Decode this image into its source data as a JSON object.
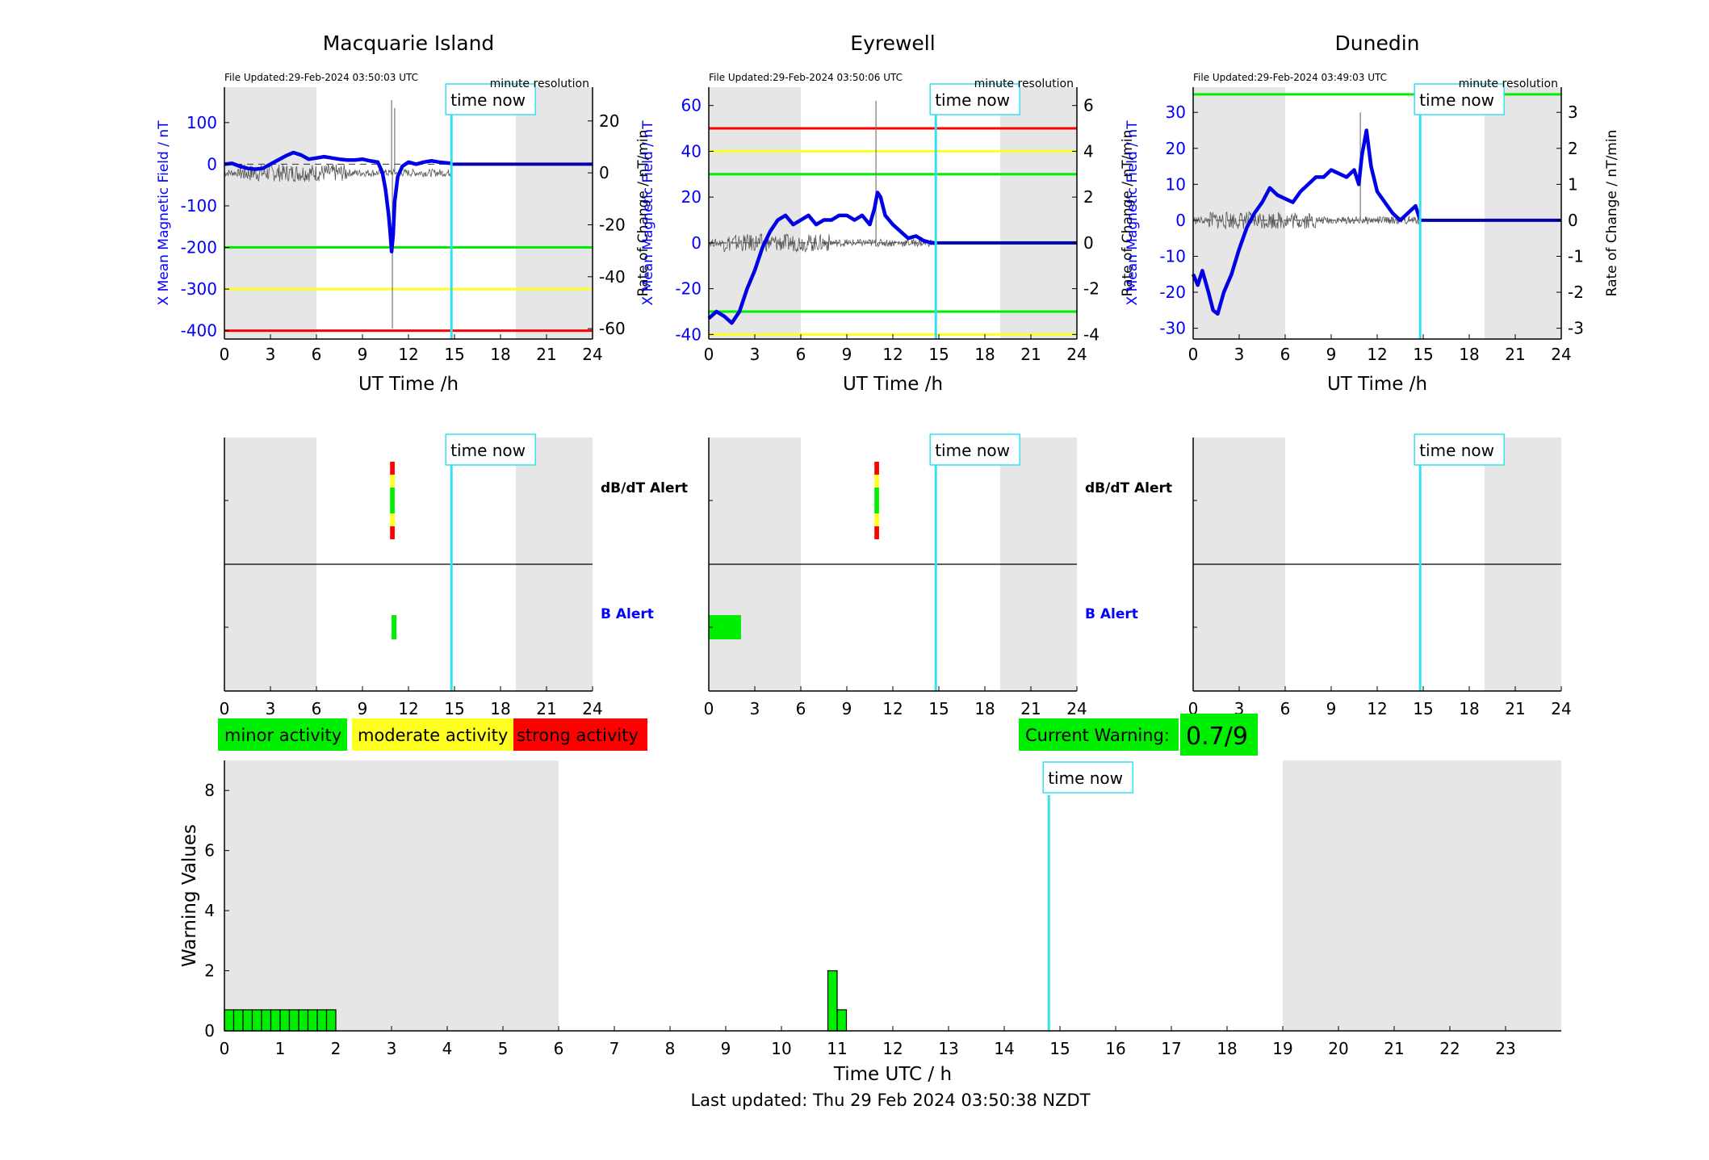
{
  "footer": {
    "last_updated": "Last updated: Thu 29 Feb 2024 03:50:38 NZDT"
  },
  "time_now_label": "time now",
  "colors": {
    "trace": "#0000e6",
    "rate": "#555555",
    "now": "#33e0f0",
    "green": "#00ee00",
    "yellow": "#ffff22",
    "red": "#ff0000",
    "shade": "#e6e6e6"
  },
  "chart_data": [
    {
      "type": "line",
      "title": "Macquarie Island",
      "file_updated": "File Updated:29-Feb-2024 03:50:03 UTC",
      "resolution": "minute resolution",
      "xlabel": "UT Time /h",
      "ylabel": "X Mean Magnetic Field / nT",
      "y2label": "Rate of Change / nT/min",
      "xlim": [
        0,
        24
      ],
      "ylim": [
        -420,
        185
      ],
      "y2lim": [
        -64,
        33
      ],
      "xticks": [
        "0",
        "3",
        "6",
        "9",
        "12",
        "15",
        "18",
        "21",
        "24"
      ],
      "yticks": [
        "100",
        "0",
        "-100",
        "-200",
        "-300",
        "-400"
      ],
      "y2ticks": [
        "20",
        "0",
        "-20",
        "-40",
        "-60"
      ],
      "night_shading": [
        [
          0,
          6
        ],
        [
          19,
          24
        ]
      ],
      "thresholds": [
        {
          "level": "green",
          "y": -200
        },
        {
          "level": "yellow",
          "y": -300
        },
        {
          "level": "red",
          "y": -400
        }
      ],
      "time_now": 14.8,
      "x": [
        0,
        0.5,
        1,
        1.5,
        2,
        2.5,
        3,
        3.5,
        4,
        4.5,
        5,
        5.5,
        6,
        6.5,
        7,
        7.5,
        8,
        8.5,
        9,
        9.5,
        10,
        10.3,
        10.5,
        10.7,
        10.8,
        10.9,
        11,
        11.1,
        11.3,
        11.6,
        12,
        12.5,
        13,
        13.5,
        14,
        14.5,
        14.8
      ],
      "y": [
        0,
        2,
        -5,
        -10,
        -12,
        -10,
        0,
        10,
        20,
        28,
        22,
        12,
        15,
        18,
        15,
        12,
        10,
        10,
        12,
        8,
        5,
        -20,
        -60,
        -120,
        -160,
        -210,
        -170,
        -90,
        -30,
        -5,
        5,
        0,
        5,
        8,
        5,
        3,
        2
      ],
      "forecast": [
        [
          14.8,
          0
        ],
        [
          24,
          0
        ]
      ],
      "rate_spikes": [
        [
          10.9,
          28
        ],
        [
          10.95,
          -60
        ],
        [
          11.1,
          25
        ]
      ]
    },
    {
      "type": "line",
      "title": "Eyrewell",
      "file_updated": "File Updated:29-Feb-2024 03:50:06 UTC",
      "resolution": "minute resolution",
      "xlabel": "UT Time /h",
      "ylabel": "X Mean Magnetic Field / nT",
      "y2label": "Rate of Change / nT/min",
      "xlim": [
        0,
        24
      ],
      "ylim": [
        -42,
        68
      ],
      "y2lim": [
        -4.2,
        6.8
      ],
      "xticks": [
        "0",
        "3",
        "6",
        "9",
        "12",
        "15",
        "18",
        "21",
        "24"
      ],
      "yticks": [
        "60",
        "40",
        "20",
        "0",
        "-20",
        "-40"
      ],
      "y2ticks": [
        "6",
        "4",
        "2",
        "0",
        "-2",
        "-4"
      ],
      "night_shading": [
        [
          0,
          6
        ],
        [
          19,
          24
        ]
      ],
      "thresholds": [
        {
          "level": "red",
          "y": 50
        },
        {
          "level": "yellow",
          "y": 40
        },
        {
          "level": "green",
          "y": 30
        },
        {
          "level": "green",
          "y": -30
        },
        {
          "level": "yellow",
          "y": -40
        }
      ],
      "time_now": 14.8,
      "x": [
        0,
        0.5,
        1,
        1.5,
        2,
        2.5,
        3,
        3.5,
        4,
        4.5,
        5,
        5.5,
        6,
        6.5,
        7,
        7.5,
        8,
        8.5,
        9,
        9.5,
        10,
        10.5,
        10.8,
        11,
        11.2,
        11.5,
        12,
        12.5,
        13,
        13.5,
        14,
        14.5,
        14.8
      ],
      "y": [
        -33,
        -30,
        -32,
        -35,
        -30,
        -20,
        -12,
        -2,
        5,
        10,
        12,
        8,
        10,
        12,
        8,
        10,
        10,
        12,
        12,
        10,
        12,
        8,
        15,
        22,
        20,
        12,
        8,
        5,
        2,
        3,
        1,
        0,
        0
      ],
      "forecast": [
        [
          14.8,
          0
        ],
        [
          24,
          0
        ]
      ],
      "rate_spikes": [
        [
          10.9,
          6.2
        ]
      ]
    },
    {
      "type": "line",
      "title": "Dunedin",
      "file_updated": "File Updated:29-Feb-2024 03:49:03 UTC",
      "resolution": "minute resolution",
      "xlabel": "UT Time /h",
      "ylabel": "X Mean Magnetic Field / nT",
      "y2label": "Rate of Change / nT/min",
      "xlim": [
        0,
        24
      ],
      "ylim": [
        -33,
        37
      ],
      "y2lim": [
        -3.3,
        3.7
      ],
      "xticks": [
        "0",
        "3",
        "6",
        "9",
        "12",
        "15",
        "18",
        "21",
        "24"
      ],
      "yticks": [
        "30",
        "20",
        "10",
        "0",
        "-10",
        "-20",
        "-30"
      ],
      "y2ticks": [
        "3",
        "2",
        "1",
        "0",
        "-1",
        "-2",
        "-3"
      ],
      "night_shading": [
        [
          0,
          6
        ],
        [
          19,
          24
        ]
      ],
      "thresholds": [
        {
          "level": "green",
          "y": 35
        }
      ],
      "time_now": 14.8,
      "x": [
        0,
        0.3,
        0.6,
        1,
        1.3,
        1.6,
        2,
        2.5,
        3,
        3.5,
        4,
        4.5,
        5,
        5.5,
        6,
        6.5,
        7,
        7.5,
        8,
        8.5,
        9,
        9.5,
        10,
        10.5,
        10.8,
        11,
        11.3,
        11.6,
        12,
        12.5,
        13,
        13.5,
        14,
        14.5,
        14.8
      ],
      "y": [
        -15,
        -18,
        -14,
        -20,
        -25,
        -26,
        -20,
        -15,
        -8,
        -2,
        2,
        5,
        9,
        7,
        6,
        5,
        8,
        10,
        12,
        12,
        14,
        13,
        12,
        14,
        10,
        18,
        25,
        15,
        8,
        5,
        2,
        0,
        2,
        4,
        0
      ],
      "forecast": [
        [
          14.8,
          0
        ],
        [
          24,
          0
        ]
      ],
      "rate_spikes": [
        [
          10.9,
          3.0
        ]
      ]
    },
    {
      "type": "alert",
      "xticks": [
        "0",
        "3",
        "6",
        "9",
        "12",
        "15",
        "18",
        "21",
        "24"
      ],
      "row_labels": [
        "dB/dT Alert",
        "B Alert"
      ],
      "panels": [
        {
          "db_alert": [
            10.8,
            11.1
          ],
          "b_alert": [
            [
              10.9,
              11.1
            ]
          ]
        },
        {
          "db_alert": [
            10.8,
            11.1
          ],
          "b_alert": [
            [
              0,
              2.1
            ]
          ]
        },
        {
          "db_alert": null,
          "b_alert": []
        }
      ]
    },
    {
      "type": "bar",
      "xlabel": "Time UTC / h",
      "ylabel": "Warning Values",
      "xlim": [
        0,
        24
      ],
      "ylim": [
        0,
        9
      ],
      "xticks": [
        "0",
        "1",
        "2",
        "3",
        "4",
        "5",
        "6",
        "7",
        "8",
        "9",
        "10",
        "11",
        "12",
        "13",
        "14",
        "15",
        "16",
        "17",
        "18",
        "19",
        "20",
        "21",
        "22",
        "23"
      ],
      "yticks": [
        "0",
        "2",
        "4",
        "6",
        "8"
      ],
      "night_shading": [
        [
          0,
          6
        ],
        [
          19,
          24
        ]
      ],
      "time_now": 14.8,
      "bar_width_h": 0.1667,
      "bars_x": [
        0,
        0.1667,
        0.3333,
        0.5,
        0.6667,
        0.8333,
        1,
        1.1667,
        1.3333,
        1.5,
        1.6667,
        1.8333,
        10.8333,
        11.0
      ],
      "bars_y": [
        0.7,
        0.7,
        0.7,
        0.7,
        0.7,
        0.7,
        0.7,
        0.7,
        0.7,
        0.7,
        0.7,
        0.7,
        2,
        0.7
      ]
    }
  ],
  "legend": {
    "minor": "minor activity",
    "moderate": "moderate activity",
    "strong": "strong activity"
  },
  "current_warning": {
    "label": "Current Warning:",
    "value": "0.7/9"
  }
}
